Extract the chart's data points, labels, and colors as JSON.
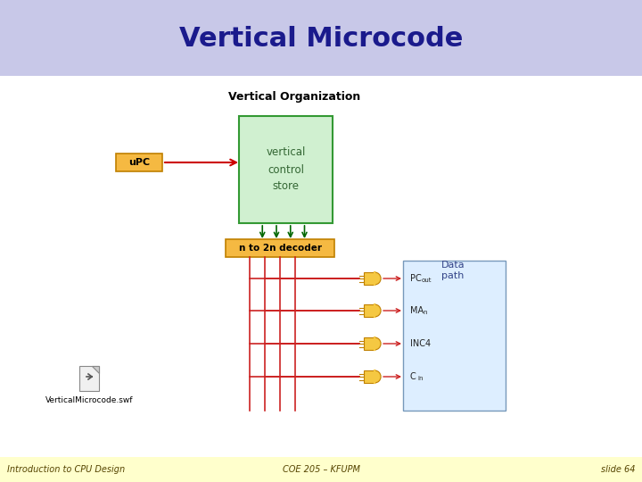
{
  "title": "Vertical Microcode",
  "title_bg": "#c8c8e8",
  "title_color": "#1a1a8c",
  "slide_bg": "#ffffff",
  "footer_bg": "#ffffcc",
  "footer_left": "Introduction to CPU Design",
  "footer_center": "COE 205 – KFUPM",
  "footer_right": "slide 64",
  "diagram_title": "Vertical Organization",
  "upc_label": "uPC",
  "upc_box_color": "#f5b942",
  "upc_box_edge": "#c08000",
  "store_label": "vertical\ncontrol\nstore",
  "store_box_color": "#d0f0d0",
  "store_box_edge": "#339933",
  "decoder_label": "n to 2n decoder",
  "decoder_box_color": "#f5b942",
  "decoder_box_edge": "#c08000",
  "datapath_label": "Data\npath",
  "datapath_box_color": "#ddeeff",
  "datapath_box_edge": "#7799bb",
  "datapath_label_color": "#334488",
  "gate_labels": [
    "PC",
    "out",
    "MA",
    "n",
    "INC4",
    "C",
    "in"
  ],
  "gate_color": "#f5c842",
  "gate_edge": "#c08000",
  "arrow_color": "#cc0000",
  "green_arrow_color": "#006600",
  "line_color": "#cc2222",
  "swf_label": "VerticalMicrocode.swf",
  "footer_fontsize": 7,
  "title_fontsize": 22
}
